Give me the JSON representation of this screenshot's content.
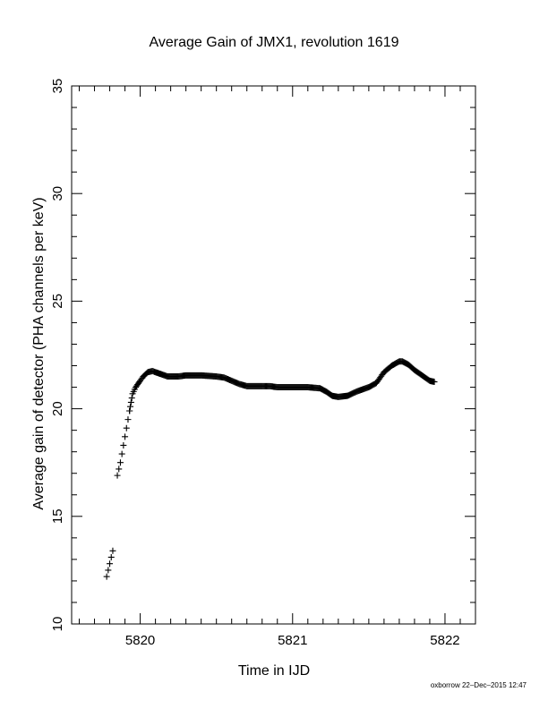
{
  "chart_data": {
    "type": "scatter",
    "title": "Average Gain of JMX1, revolution 1619",
    "xlabel": "Time in IJD",
    "ylabel": "Average gain of detector (PHA channels per keV)",
    "xlim": [
      5819.55,
      5822.2
    ],
    "ylim": [
      10,
      35
    ],
    "xticks": [
      5820,
      5821,
      5822
    ],
    "yticks": [
      10,
      15,
      20,
      25,
      30,
      35
    ],
    "marker": "plus",
    "color": "#000000",
    "grid": false,
    "series": [
      {
        "name": "",
        "points": [
          [
            5819.78,
            12.2
          ],
          [
            5819.79,
            12.5
          ],
          [
            5819.8,
            12.8
          ],
          [
            5819.81,
            13.1
          ],
          [
            5819.82,
            13.4
          ],
          [
            5819.85,
            16.9
          ],
          [
            5819.86,
            17.2
          ],
          [
            5819.87,
            17.5
          ],
          [
            5819.88,
            17.9
          ],
          [
            5819.89,
            18.3
          ],
          [
            5819.9,
            18.7
          ],
          [
            5819.91,
            19.1
          ],
          [
            5819.92,
            19.5
          ],
          [
            5819.93,
            19.9
          ],
          [
            5819.94,
            20.3
          ],
          [
            5819.95,
            20.7
          ],
          [
            5819.97,
            21.0
          ],
          [
            5820.0,
            21.3
          ],
          [
            5820.02,
            21.5
          ],
          [
            5820.05,
            21.7
          ],
          [
            5820.08,
            21.75
          ],
          [
            5820.1,
            21.7
          ],
          [
            5820.14,
            21.6
          ],
          [
            5820.18,
            21.5
          ],
          [
            5820.25,
            21.5
          ],
          [
            5820.3,
            21.55
          ],
          [
            5820.4,
            21.55
          ],
          [
            5820.5,
            21.5
          ],
          [
            5820.55,
            21.45
          ],
          [
            5820.6,
            21.3
          ],
          [
            5820.65,
            21.15
          ],
          [
            5820.7,
            21.05
          ],
          [
            5820.8,
            21.05
          ],
          [
            5820.85,
            21.05
          ],
          [
            5820.9,
            21.0
          ],
          [
            5821.0,
            21.0
          ],
          [
            5821.1,
            21.0
          ],
          [
            5821.18,
            20.95
          ],
          [
            5821.22,
            20.8
          ],
          [
            5821.26,
            20.6
          ],
          [
            5821.3,
            20.55
          ],
          [
            5821.36,
            20.6
          ],
          [
            5821.42,
            20.8
          ],
          [
            5821.5,
            21.0
          ],
          [
            5821.55,
            21.2
          ],
          [
            5821.6,
            21.7
          ],
          [
            5821.65,
            22.0
          ],
          [
            5821.7,
            22.2
          ],
          [
            5821.72,
            22.2
          ],
          [
            5821.76,
            22.05
          ],
          [
            5821.8,
            21.8
          ],
          [
            5821.85,
            21.55
          ],
          [
            5821.9,
            21.3
          ],
          [
            5821.93,
            21.25
          ]
        ]
      }
    ]
  },
  "footer": {
    "stamp": "oxborrow 22–Dec–2015 12:47"
  }
}
